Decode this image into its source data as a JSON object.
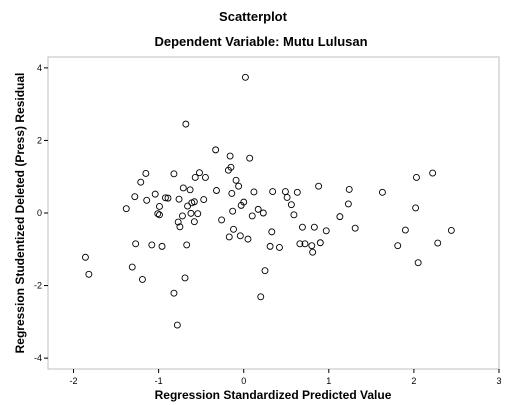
{
  "chart_data": {
    "type": "scatter",
    "title": "Scatterplot",
    "subtitle": "Dependent Variable: Mutu Lulusan",
    "xlabel": "Regression Standardized Predicted Value",
    "ylabel": "Regression Studentized Deleted (Press) Residual",
    "xlim": [
      -2.3,
      3.0
    ],
    "ylim": [
      -4.3,
      4.3
    ],
    "xticks": [
      "-2",
      "-1",
      "0",
      "1",
      "2",
      "3"
    ],
    "yticks": [
      "-4",
      "-2",
      "0",
      "2",
      "4"
    ],
    "grid": false,
    "marker": "open-circle",
    "points": [
      {
        "x": -1.86,
        "y": -1.22
      },
      {
        "x": -1.82,
        "y": -1.69
      },
      {
        "x": -1.38,
        "y": 0.12
      },
      {
        "x": -1.31,
        "y": -1.49
      },
      {
        "x": -1.28,
        "y": 0.45
      },
      {
        "x": -1.27,
        "y": -0.85
      },
      {
        "x": -1.21,
        "y": 0.85
      },
      {
        "x": -1.19,
        "y": -1.83
      },
      {
        "x": -1.15,
        "y": 1.09
      },
      {
        "x": -1.14,
        "y": 0.35
      },
      {
        "x": -1.08,
        "y": -0.88
      },
      {
        "x": -1.04,
        "y": 0.52
      },
      {
        "x": -1.01,
        "y": -0.02
      },
      {
        "x": -0.99,
        "y": 0.18
      },
      {
        "x": -0.99,
        "y": -0.05
      },
      {
        "x": -0.96,
        "y": -0.92
      },
      {
        "x": -0.92,
        "y": 0.42
      },
      {
        "x": -0.89,
        "y": 0.41
      },
      {
        "x": -0.82,
        "y": 1.08
      },
      {
        "x": -0.82,
        "y": -2.21
      },
      {
        "x": -0.78,
        "y": -3.09
      },
      {
        "x": -0.77,
        "y": -0.25
      },
      {
        "x": -0.76,
        "y": 0.38
      },
      {
        "x": -0.75,
        "y": -0.38
      },
      {
        "x": -0.72,
        "y": -0.08
      },
      {
        "x": -0.71,
        "y": 0.69
      },
      {
        "x": -0.69,
        "y": -1.79
      },
      {
        "x": -0.68,
        "y": 2.45
      },
      {
        "x": -0.67,
        "y": -0.88
      },
      {
        "x": -0.66,
        "y": 0.19
      },
      {
        "x": -0.63,
        "y": 0.64
      },
      {
        "x": -0.62,
        "y": -0.01
      },
      {
        "x": -0.61,
        "y": 0.28
      },
      {
        "x": -0.58,
        "y": -0.24
      },
      {
        "x": -0.58,
        "y": 0.31
      },
      {
        "x": -0.57,
        "y": 0.98
      },
      {
        "x": -0.54,
        "y": -0.02
      },
      {
        "x": -0.52,
        "y": 1.11
      },
      {
        "x": -0.47,
        "y": 0.37
      },
      {
        "x": -0.45,
        "y": 0.98
      },
      {
        "x": -0.33,
        "y": 1.74
      },
      {
        "x": -0.32,
        "y": 0.62
      },
      {
        "x": -0.26,
        "y": -0.19
      },
      {
        "x": -0.18,
        "y": 1.18
      },
      {
        "x": -0.17,
        "y": -0.66
      },
      {
        "x": -0.16,
        "y": 1.57
      },
      {
        "x": -0.15,
        "y": 1.26
      },
      {
        "x": -0.14,
        "y": 0.54
      },
      {
        "x": -0.13,
        "y": 0.05
      },
      {
        "x": -0.12,
        "y": -0.45
      },
      {
        "x": -0.09,
        "y": 0.9
      },
      {
        "x": -0.06,
        "y": 0.74
      },
      {
        "x": -0.04,
        "y": -0.63
      },
      {
        "x": -0.03,
        "y": 0.21
      },
      {
        "x": 0.0,
        "y": 0.3
      },
      {
        "x": 0.02,
        "y": 3.74
      },
      {
        "x": 0.05,
        "y": -0.72
      },
      {
        "x": 0.07,
        "y": 1.51
      },
      {
        "x": 0.1,
        "y": -0.08
      },
      {
        "x": 0.12,
        "y": 0.58
      },
      {
        "x": 0.17,
        "y": 0.1
      },
      {
        "x": 0.2,
        "y": -2.31
      },
      {
        "x": 0.23,
        "y": 0.0
      },
      {
        "x": 0.25,
        "y": -1.59
      },
      {
        "x": 0.31,
        "y": -0.92
      },
      {
        "x": 0.33,
        "y": -0.52
      },
      {
        "x": 0.34,
        "y": 0.59
      },
      {
        "x": 0.42,
        "y": -0.95
      },
      {
        "x": 0.49,
        "y": 0.59
      },
      {
        "x": 0.51,
        "y": 0.43
      },
      {
        "x": 0.56,
        "y": 0.23
      },
      {
        "x": 0.59,
        "y": -0.05
      },
      {
        "x": 0.63,
        "y": 0.57
      },
      {
        "x": 0.66,
        "y": -0.85
      },
      {
        "x": 0.69,
        "y": -0.39
      },
      {
        "x": 0.72,
        "y": -0.85
      },
      {
        "x": 0.8,
        "y": -0.9
      },
      {
        "x": 0.81,
        "y": -1.08
      },
      {
        "x": 0.83,
        "y": -0.39
      },
      {
        "x": 0.88,
        "y": 0.74
      },
      {
        "x": 0.9,
        "y": -0.82
      },
      {
        "x": 0.97,
        "y": -0.49
      },
      {
        "x": 1.13,
        "y": -0.1
      },
      {
        "x": 1.23,
        "y": 0.25
      },
      {
        "x": 1.24,
        "y": 0.65
      },
      {
        "x": 1.31,
        "y": -0.42
      },
      {
        "x": 1.63,
        "y": 0.57
      },
      {
        "x": 1.81,
        "y": -0.9
      },
      {
        "x": 1.9,
        "y": -0.47
      },
      {
        "x": 2.02,
        "y": 0.14
      },
      {
        "x": 2.03,
        "y": 0.98
      },
      {
        "x": 2.05,
        "y": -1.37
      },
      {
        "x": 2.22,
        "y": 1.1
      },
      {
        "x": 2.28,
        "y": -0.83
      },
      {
        "x": 2.44,
        "y": -0.48
      }
    ]
  }
}
